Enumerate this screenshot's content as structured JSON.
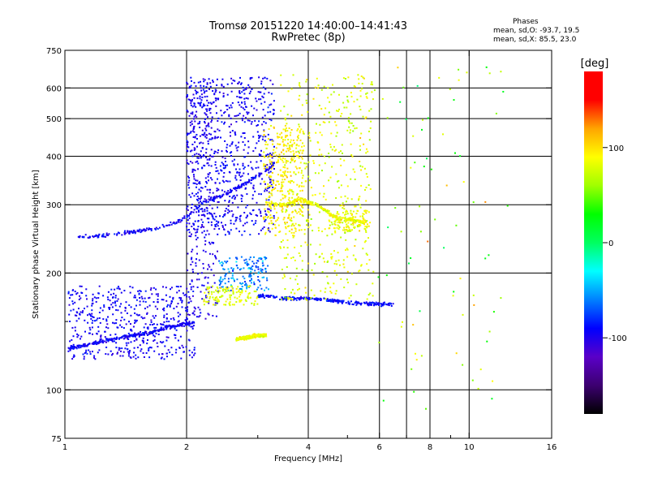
{
  "title": "Tromsø 20151220 14:40:00–14:41:43",
  "subtitle": "RwPretec (8p)",
  "phases": {
    "heading": "Phases",
    "o_line": "mean, sd,O: -93.7, 19.5",
    "x_line": "mean, sd,X: 85.5, 23.0"
  },
  "chart_data": {
    "type": "scatter",
    "xlabel": "Frequency [MHz]",
    "ylabel": "Stationary phase Virtual Height [km]",
    "x_scale": "log",
    "y_scale": "log",
    "xlim": [
      1,
      16
    ],
    "ylim": [
      75,
      750
    ],
    "x_ticks": [
      1,
      2,
      4,
      6,
      8,
      10,
      16
    ],
    "x_tick_labels": [
      "1",
      "2",
      "4",
      "6",
      "8",
      "10",
      "16"
    ],
    "x_minor_ticks": [
      3,
      5,
      7,
      9
    ],
    "y_ticks": [
      75,
      100,
      200,
      300,
      400,
      500,
      600,
      750
    ],
    "y_tick_labels": [
      "75",
      "100",
      "200",
      "300",
      "400",
      "500",
      "600",
      "750"
    ],
    "y_minor_ticks": [
      150
    ],
    "x_grid": [
      2,
      4,
      6,
      7,
      8,
      10
    ],
    "y_grid": [
      100,
      200,
      300,
      400,
      500,
      600
    ],
    "colorbar": {
      "label": "[deg]",
      "range": [
        -180,
        180
      ],
      "ticks": [
        100,
        0,
        -100
      ],
      "tick_labels": [
        "100",
        "0",
        "-100"
      ],
      "stops": [
        "#000000",
        "#3c0070",
        "#5a00c8",
        "#0000ff",
        "#0080ff",
        "#00ffff",
        "#00ff60",
        "#00ff00",
        "#a0ff00",
        "#ffff00",
        "#ffa500",
        "#ff0000",
        "#ff0000"
      ]
    },
    "series": [
      {
        "description": "F-layer O trace",
        "points": [
          [
            1.08,
            248
          ],
          [
            1.25,
            250
          ],
          [
            1.45,
            255
          ],
          [
            1.65,
            260
          ],
          [
            1.85,
            268
          ],
          [
            2.0,
            278
          ],
          [
            2.2,
            305
          ],
          [
            2.5,
            320
          ],
          [
            2.8,
            340
          ],
          [
            3.1,
            365
          ],
          [
            3.3,
            380
          ]
        ],
        "phase": -95
      },
      {
        "description": "E/F1 low trace",
        "points": [
          [
            1.02,
            128
          ],
          [
            1.2,
            132
          ],
          [
            1.4,
            137
          ],
          [
            1.6,
            140
          ],
          [
            1.8,
            145
          ],
          [
            2.0,
            148
          ],
          [
            2.1,
            150
          ]
        ],
        "phase": -95
      },
      {
        "description": "F1 trace",
        "points": [
          [
            3.0,
            175
          ],
          [
            3.5,
            172
          ],
          [
            4.0,
            172
          ],
          [
            4.5,
            170
          ],
          [
            5.0,
            168
          ],
          [
            5.5,
            167
          ],
          [
            6.0,
            166
          ],
          [
            6.5,
            166
          ]
        ],
        "phase": -90
      },
      {
        "description": "X trace high",
        "points": [
          [
            3.2,
            300
          ],
          [
            3.5,
            300
          ],
          [
            3.8,
            310
          ],
          [
            4.2,
            300
          ],
          [
            4.6,
            280
          ],
          [
            5.0,
            275
          ],
          [
            5.5,
            270
          ]
        ],
        "phase": 85
      },
      {
        "description": "X trace 135km",
        "points": [
          [
            2.65,
            135
          ],
          [
            2.8,
            136
          ],
          [
            3.0,
            138
          ],
          [
            3.15,
            138
          ]
        ],
        "phase": 85
      }
    ]
  }
}
